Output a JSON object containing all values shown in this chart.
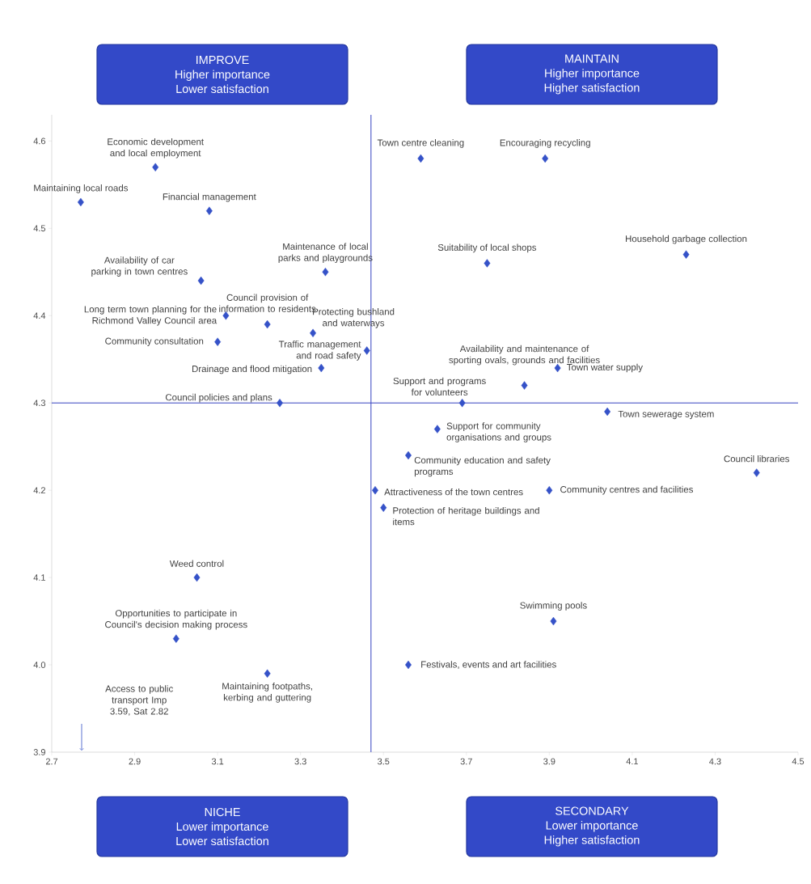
{
  "chart_data": {
    "type": "scatter",
    "x": [
      2.77,
      2.95,
      3.08,
      3.06,
      3.12,
      3.1,
      3.22,
      3.36,
      3.33,
      3.46,
      3.35,
      3.25,
      3.59,
      3.89,
      3.75,
      4.23,
      3.84,
      3.92,
      3.69,
      4.04,
      3.63,
      3.56,
      4.4,
      3.48,
      3.5,
      3.9,
      3.05,
      3.0,
      3.22,
      3.91,
      3.56
    ],
    "values": [
      4.53,
      4.57,
      4.52,
      4.44,
      4.4,
      4.37,
      4.39,
      4.45,
      4.38,
      4.36,
      4.34,
      4.3,
      4.58,
      4.58,
      4.46,
      4.47,
      4.32,
      4.34,
      4.3,
      4.29,
      4.27,
      4.24,
      4.22,
      4.2,
      4.18,
      4.2,
      4.1,
      4.03,
      3.99,
      4.05,
      4.0
    ],
    "color": "#3552c8",
    "marker": "diamond",
    "xlim": [
      2.7,
      4.5
    ],
    "ylim": [
      3.9,
      4.63
    ],
    "xticks": [
      2.7,
      2.9,
      3.1,
      3.3,
      3.5,
      3.7,
      3.9,
      4.1,
      4.3,
      4.5
    ],
    "yticks": [
      3.9,
      {
        "value": 4.0,
        "label": "4.0"
      },
      4.1,
      4.2,
      4.3,
      4.4,
      4.5,
      4.6
    ],
    "ref_lines": [
      {
        "axis": "x",
        "value": 3.47,
        "color": "#3340c0"
      },
      {
        "axis": "y",
        "value": 4.3,
        "color": "#3340c0"
      }
    ],
    "annotations": [
      "IMPROVE",
      "Higher importance",
      "Lower satisfaction",
      "MAINTAIN",
      "Higher importance",
      "Higher satisfaction",
      "NICHE",
      "Lower importance",
      "Lower satisfaction",
      "SECONDARY",
      "Lower importance",
      "Higher satisfaction",
      "Access to public transport Imp 3.59, Sat 2.82",
      {
        "text": "Maintaining local roads",
        "x": 2.77,
        "y": 4.53
      },
      {
        "text": "Economic development and local employment",
        "x": 2.95,
        "y": 4.57
      },
      {
        "text": "Financial management",
        "x": 3.08,
        "y": 4.52
      },
      {
        "text": "Availability of car parking in town centres",
        "x": 3.06,
        "y": 4.44
      },
      {
        "text": "Long term town planning for the Richmond Valley Council area",
        "x": 3.12,
        "y": 4.4
      },
      {
        "text": "Community consultation",
        "x": 3.1,
        "y": 4.37
      },
      {
        "text": "Council provision of information to residents",
        "x": 3.22,
        "y": 4.39
      },
      {
        "text": "Maintenance of local parks and playgrounds",
        "x": 3.36,
        "y": 4.45
      },
      {
        "text": "Protecting bushland and waterways",
        "x": 3.33,
        "y": 4.38
      },
      {
        "text": "Traffic management and road safety",
        "x": 3.46,
        "y": 4.36
      },
      {
        "text": "Drainage and flood mitigation",
        "x": 3.35,
        "y": 4.34
      },
      {
        "text": "Council policies and plans",
        "x": 3.25,
        "y": 4.3
      },
      {
        "text": "Town centre cleaning",
        "x": 3.59,
        "y": 4.58
      },
      {
        "text": "Encouraging recycling",
        "x": 3.89,
        "y": 4.58
      },
      {
        "text": "Suitability of local shops",
        "x": 3.75,
        "y": 4.46
      },
      {
        "text": "Household garbage collection",
        "x": 4.23,
        "y": 4.47
      },
      {
        "text": "Availability and maintenance of sporting ovals, grounds and facilities",
        "x": 3.84,
        "y": 4.32
      },
      {
        "text": "Town water supply",
        "x": 3.92,
        "y": 4.34
      },
      {
        "text": "Support and programs for volunteers",
        "x": 3.69,
        "y": 4.3
      },
      {
        "text": "Town sewerage system",
        "x": 4.04,
        "y": 4.29
      },
      {
        "text": "Support for community organisations and groups",
        "x": 3.63,
        "y": 4.27
      },
      {
        "text": "Community education and safety programs",
        "x": 3.56,
        "y": 4.24
      },
      {
        "text": "Council libraries",
        "x": 4.4,
        "y": 4.22
      },
      {
        "text": "Attractiveness of the town centres",
        "x": 3.48,
        "y": 4.2
      },
      {
        "text": "Protection of heritage buildings and items",
        "x": 3.5,
        "y": 4.18
      },
      {
        "text": "Community centres and facilities",
        "x": 3.9,
        "y": 4.2
      },
      {
        "text": "Weed control",
        "x": 3.05,
        "y": 4.1
      },
      {
        "text": "Opportunities to participate in Council's decision making process",
        "x": 3.0,
        "y": 4.03
      },
      {
        "text": "Maintaining footpaths, kerbing and guttering",
        "x": 3.22,
        "y": 3.99
      },
      {
        "text": "Swimming pools",
        "x": 3.91,
        "y": 4.05
      },
      {
        "text": "Festivals, events and art facilities",
        "x": 3.56,
        "y": 4.0
      }
    ]
  }
}
